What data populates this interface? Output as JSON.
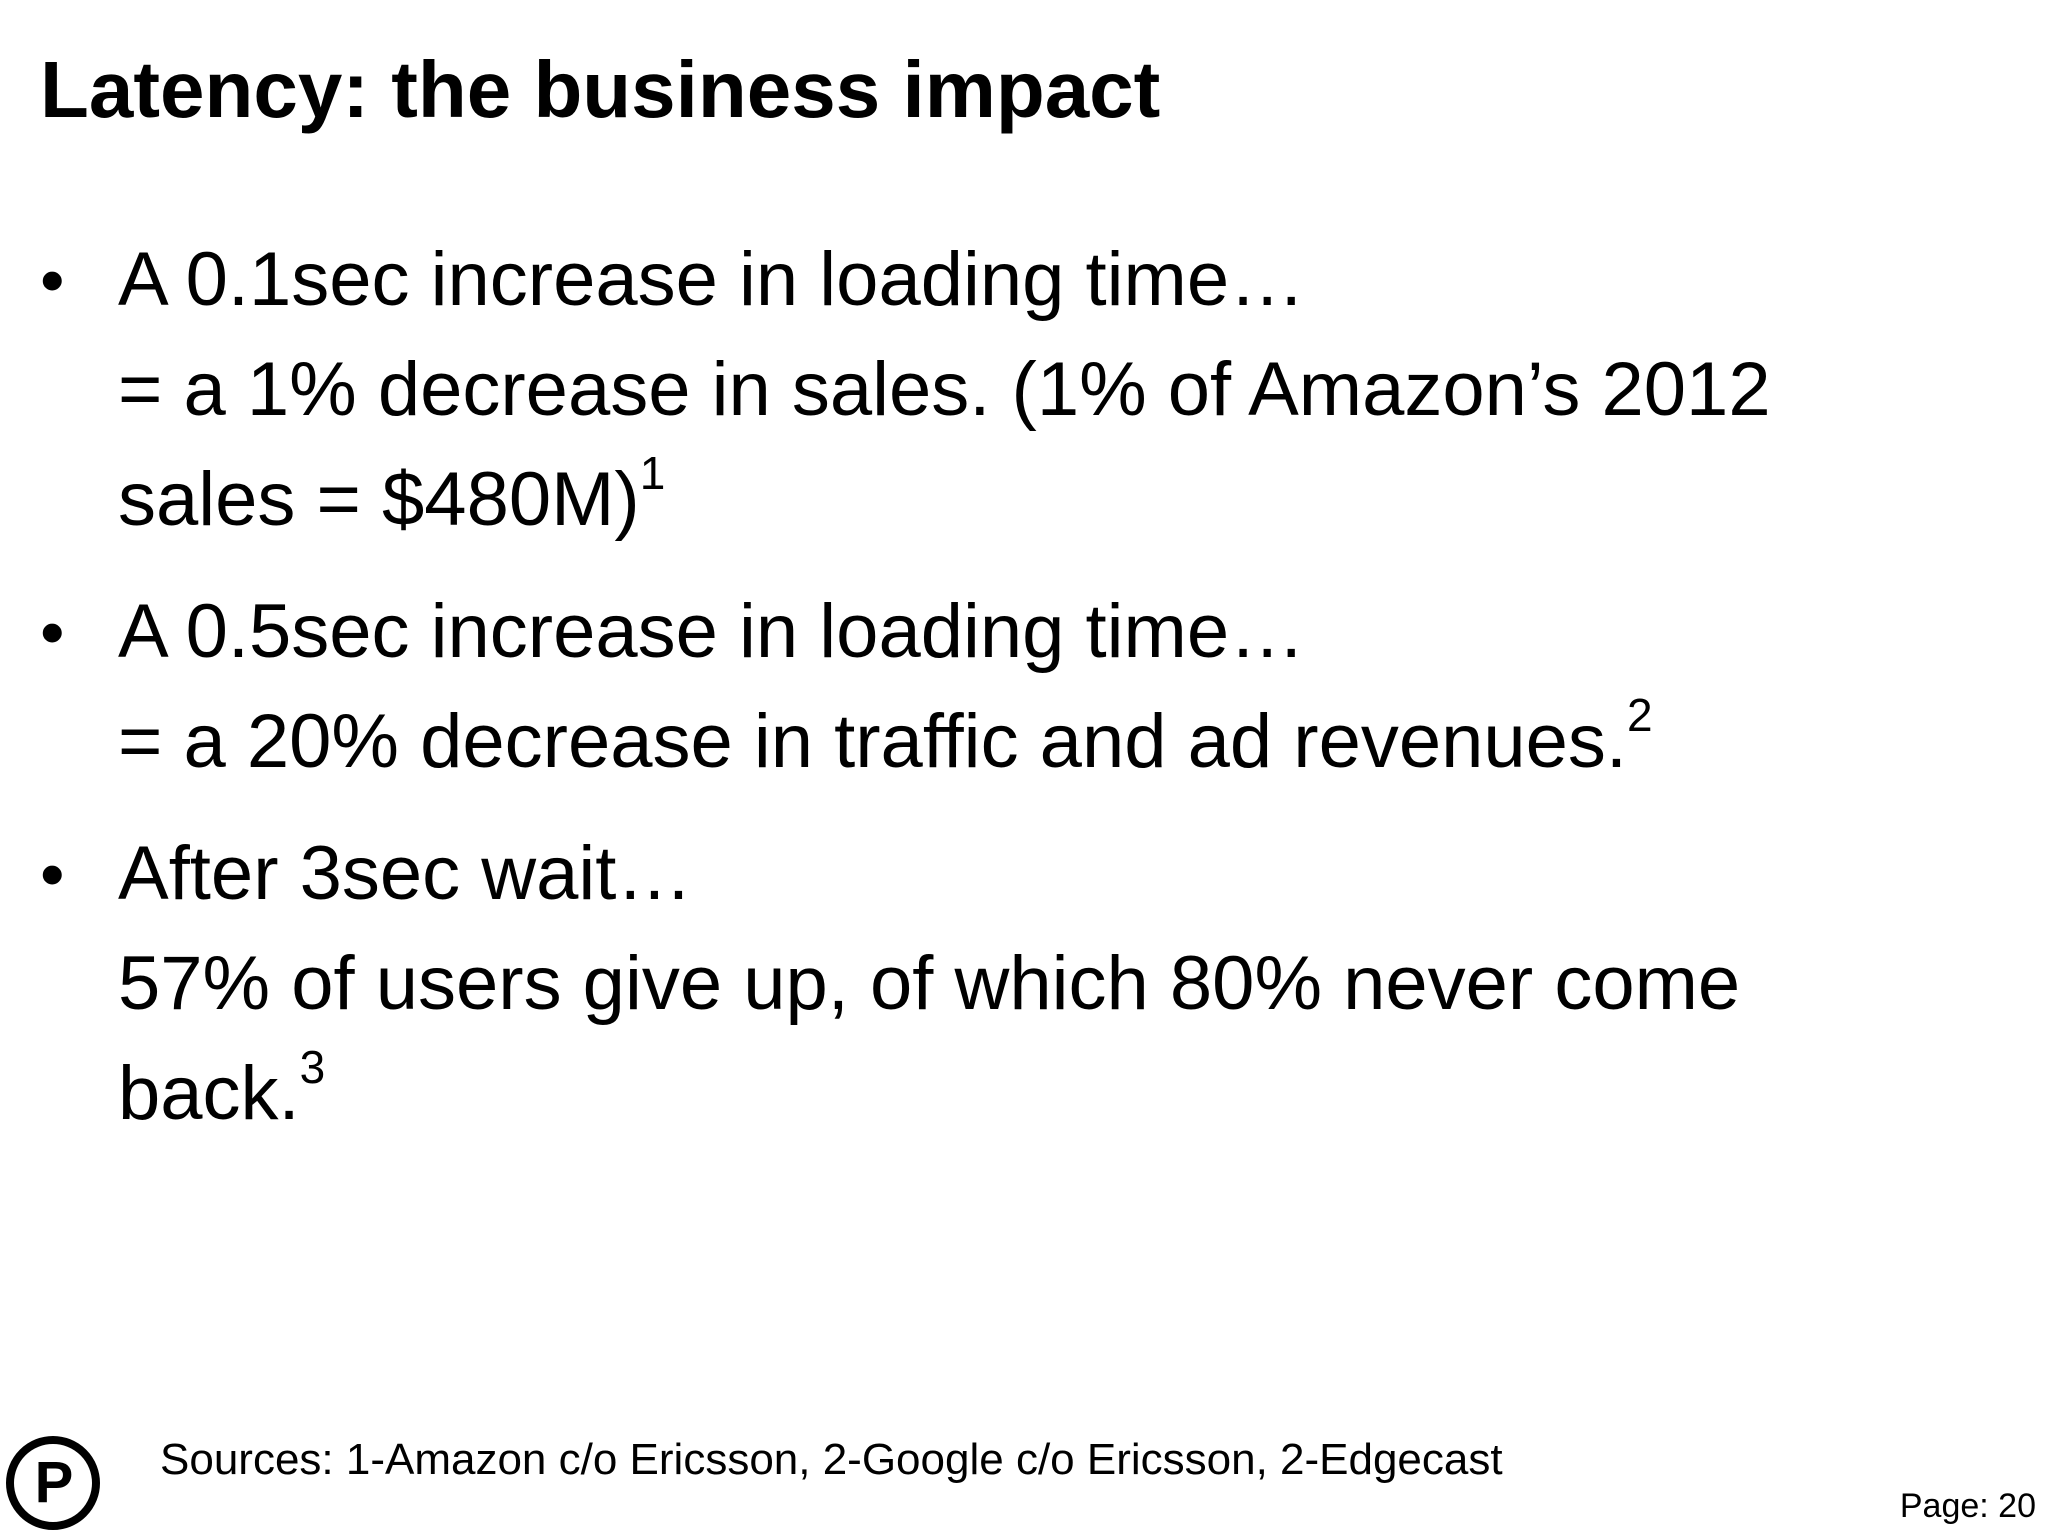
{
  "slide": {
    "title": "Latency: the business impact",
    "bullets": [
      {
        "lines": [
          "A 0.1sec increase in loading time…",
          "= a 1% decrease in sales. (1% of Amazon’s 2012",
          "sales = $480M)"
        ],
        "sup": "1"
      },
      {
        "lines": [
          "A 0.5sec increase in loading time…",
          "= a 20% decrease in traffic and ad revenues."
        ],
        "sup": "2"
      },
      {
        "lines": [
          "After 3sec wait…",
          "57% of users give up, of which 80% never come",
          "back."
        ],
        "sup": "3"
      }
    ],
    "bullet_glyph": "•",
    "sources": "Sources: 1-Amazon c/o Ericsson, 2-Google c/o Ericsson, 2-Edgecast",
    "page_label": "Page: 20",
    "logo_letter": "P",
    "logo_icon": "circled-p-logo-icon"
  }
}
